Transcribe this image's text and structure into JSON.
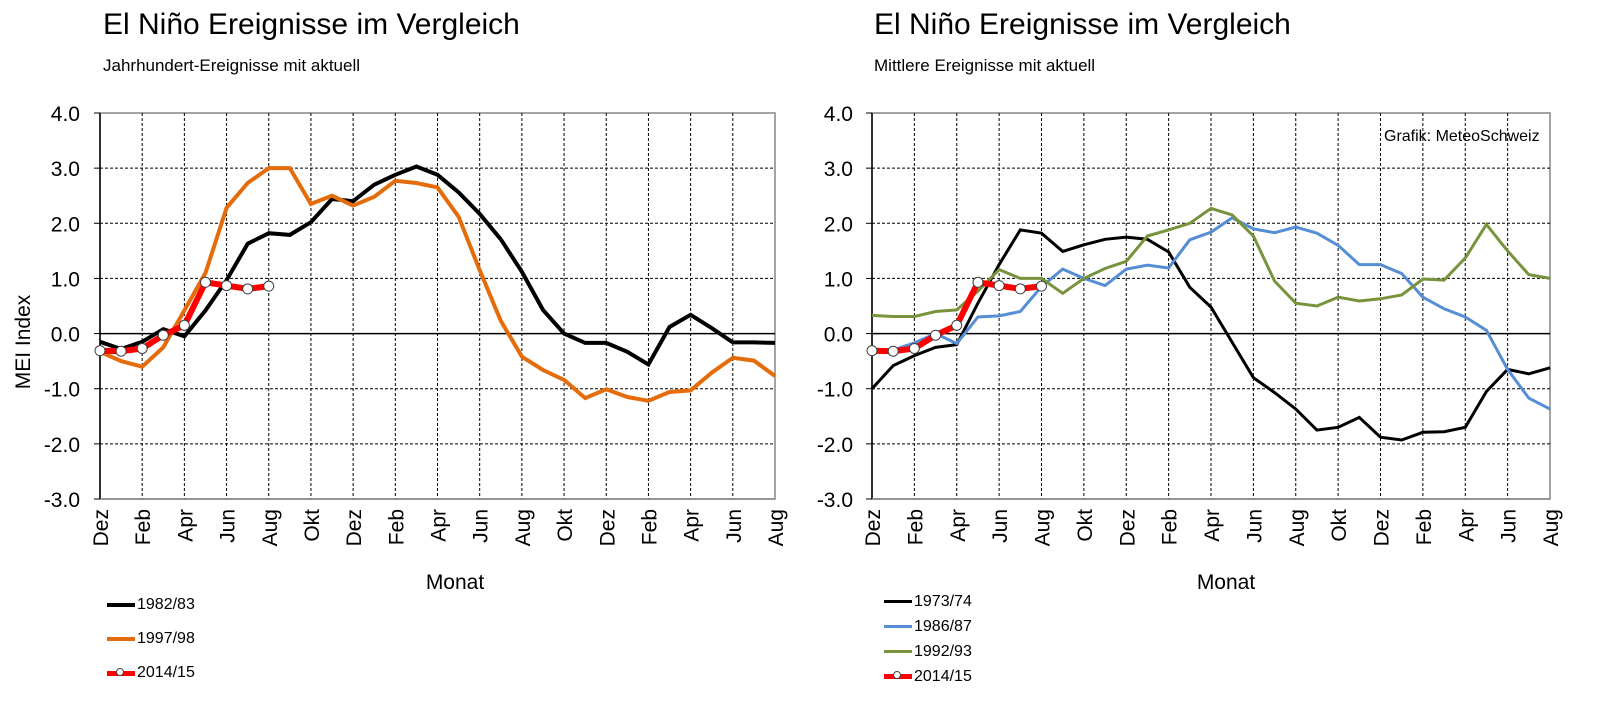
{
  "chart_data": [
    {
      "type": "line",
      "title": "El Niño Ereignisse im Vergleich",
      "subtitle": "Jahrhundert-Ereignisse  mit aktuell",
      "xlabel": "Monat",
      "ylabel": "MEI Index",
      "ylim": [
        -3.0,
        4.0
      ],
      "yticks": [
        "4.0",
        "3.0",
        "2.0",
        "1.0",
        "0.0",
        "-1.0",
        "-2.0",
        "-3.0"
      ],
      "ytick_values": [
        4,
        3,
        2,
        1,
        0,
        -1,
        -2,
        -3
      ],
      "xtick_labels": [
        "Dez",
        "Feb",
        "Apr",
        "Jun",
        "Aug",
        "Okt",
        "Dez",
        "Feb",
        "Apr",
        "Jun",
        "Aug",
        "Okt",
        "Dez",
        "Feb",
        "Apr",
        "Jun",
        "Aug"
      ],
      "month_count": 33,
      "grid": true,
      "legend_position": "bottom-left",
      "series": [
        {
          "name": "1982/83",
          "color": "#000000",
          "width": 4,
          "markers": false,
          "values": [
            -0.15,
            -0.28,
            -0.15,
            0.08,
            -0.05,
            0.42,
            0.97,
            1.63,
            1.82,
            1.79,
            2.02,
            2.44,
            2.4,
            2.7,
            2.88,
            3.03,
            2.88,
            2.56,
            2.17,
            1.71,
            1.12,
            0.43,
            0.0,
            -0.17,
            -0.17,
            -0.33,
            -0.56,
            0.12,
            0.34,
            0.1,
            -0.16,
            -0.16,
            -0.17
          ]
        },
        {
          "name": "1997/98",
          "color": "#E46C0A",
          "width": 4,
          "markers": false,
          "values": [
            -0.33,
            -0.5,
            -0.6,
            -0.25,
            0.42,
            1.1,
            2.28,
            2.73,
            3.0,
            3.0,
            2.35,
            2.5,
            2.32,
            2.48,
            2.77,
            2.73,
            2.65,
            2.12,
            1.15,
            0.23,
            -0.42,
            -0.66,
            -0.84,
            -1.17,
            -1.01,
            -1.15,
            -1.22,
            -1.06,
            -1.03,
            -0.71,
            -0.44,
            -0.49,
            -0.77
          ]
        },
        {
          "name": "2014/15",
          "color": "#FF0000",
          "width": 6,
          "markers": true,
          "values": [
            -0.31,
            -0.32,
            -0.27,
            -0.03,
            0.15,
            0.93,
            0.87,
            0.81,
            0.86
          ]
        }
      ]
    },
    {
      "type": "line",
      "title": "El Niño Ereignisse im Vergleich",
      "subtitle": "Mittlere Ereignisse mit aktuell",
      "xlabel": "Monat",
      "ylabel": "",
      "ylim": [
        -3.0,
        4.0
      ],
      "yticks": [
        "4.0",
        "3.0",
        "2.0",
        "1.0",
        "0.0",
        "-1.0",
        "-2.0",
        "-3.0"
      ],
      "ytick_values": [
        4,
        3,
        2,
        1,
        0,
        -1,
        -2,
        -3
      ],
      "xtick_labels": [
        "Dez",
        "Feb",
        "Apr",
        "Jun",
        "Aug",
        "Okt",
        "Dez",
        "Feb",
        "Apr",
        "Jun",
        "Aug",
        "Okt",
        "Dez",
        "Feb",
        "Apr",
        "Jun",
        "Aug"
      ],
      "month_count": 33,
      "grid": true,
      "legend_position": "bottom-left",
      "annotation": "Grafik: MeteoSchweiz",
      "series": [
        {
          "name": "1973/74",
          "color": "#000000",
          "width": 3,
          "markers": false,
          "values": [
            -1.0,
            -0.58,
            -0.4,
            -0.25,
            -0.2,
            0.55,
            1.25,
            1.88,
            1.82,
            1.49,
            1.61,
            1.71,
            1.75,
            1.71,
            1.48,
            0.84,
            0.48,
            -0.16,
            -0.8,
            -1.07,
            -1.37,
            -1.75,
            -1.7,
            -1.52,
            -1.88,
            -1.93,
            -1.79,
            -1.78,
            -1.7,
            -1.05,
            -0.65,
            -0.73,
            -0.62
          ]
        },
        {
          "name": "1986/87",
          "color": "#558ED5",
          "width": 3,
          "markers": false,
          "values": [
            -0.3,
            -0.3,
            -0.17,
            0.0,
            -0.18,
            0.3,
            0.32,
            0.4,
            0.85,
            1.17,
            1.0,
            0.87,
            1.17,
            1.24,
            1.19,
            1.7,
            1.84,
            2.1,
            1.9,
            1.83,
            1.93,
            1.82,
            1.6,
            1.25,
            1.25,
            1.09,
            0.66,
            0.45,
            0.3,
            0.06,
            -0.65,
            -1.17,
            -1.37
          ]
        },
        {
          "name": "1992/93",
          "color": "#77933C",
          "width": 3,
          "markers": false,
          "values": [
            0.33,
            0.31,
            0.31,
            0.4,
            0.43,
            0.77,
            1.16,
            1.0,
            1.0,
            0.73,
            1.0,
            1.18,
            1.31,
            1.77,
            1.88,
            2.0,
            2.27,
            2.15,
            1.77,
            0.95,
            0.55,
            0.5,
            0.66,
            0.59,
            0.63,
            0.7,
            0.99,
            0.97,
            1.37,
            1.98,
            1.5,
            1.07,
            1.0
          ]
        },
        {
          "name": "2014/15",
          "color": "#FF0000",
          "width": 6,
          "markers": true,
          "values": [
            -0.31,
            -0.32,
            -0.27,
            -0.03,
            0.15,
            0.93,
            0.87,
            0.81,
            0.86
          ]
        }
      ]
    }
  ]
}
